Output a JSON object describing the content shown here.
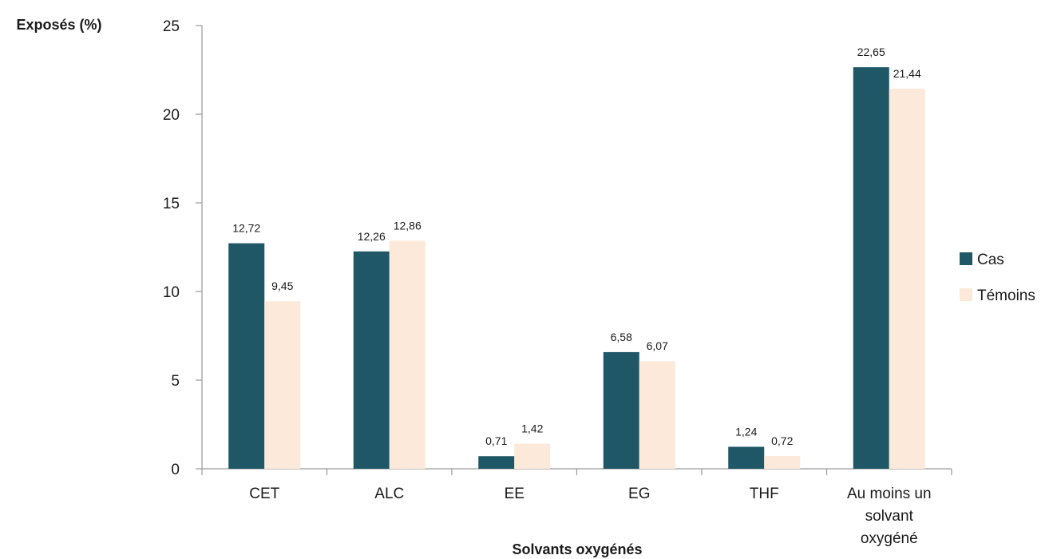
{
  "chart_data": {
    "type": "bar",
    "title": "",
    "xlabel": "Solvants oxygénés",
    "ylabel": "Exposés (%)",
    "ylim": [
      0,
      25
    ],
    "yticks": [
      "0",
      "5",
      "10",
      "15",
      "20",
      "25"
    ],
    "categories": [
      [
        "CET"
      ],
      [
        "ALC"
      ],
      [
        "EE"
      ],
      [
        "EG"
      ],
      [
        "THF"
      ],
      [
        "Au moins un",
        "solvant",
        "oxygéné"
      ]
    ],
    "series": [
      {
        "name": "Cas",
        "color": "#1f5766",
        "values": [
          12.72,
          12.26,
          0.71,
          6.58,
          1.24,
          22.65
        ],
        "labels": [
          "12,72",
          "12,26",
          "0,71",
          "6,58",
          "1,24",
          "22,65"
        ]
      },
      {
        "name": "Témoins",
        "color": "#fce9d9",
        "values": [
          9.45,
          12.86,
          1.42,
          6.07,
          0.72,
          21.44
        ],
        "labels": [
          "9,45",
          "12,86",
          "1,42",
          "6,07",
          "0,72",
          "21,44"
        ]
      }
    ],
    "legend_position": "right",
    "grid": false
  }
}
